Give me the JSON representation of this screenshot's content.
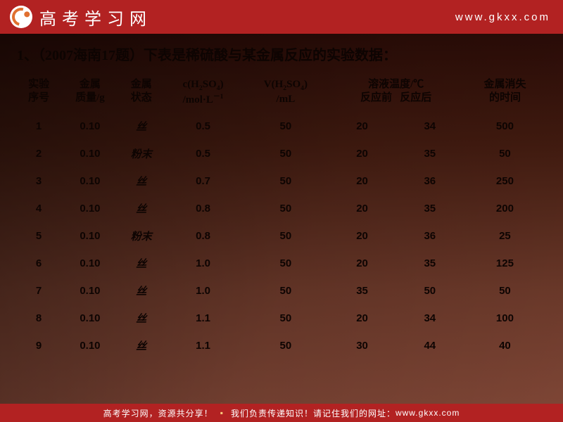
{
  "header": {
    "brand": "高考学习网",
    "url": "www.gkxx.com"
  },
  "title": "1、（2007海南17题）下表是稀硫酸与某金属反应的实验数据：",
  "table": {
    "type": "table",
    "columns": [
      {
        "line1": "实验",
        "line2": "序号"
      },
      {
        "line1": "金属",
        "line2": "质量/g"
      },
      {
        "line1": "金属",
        "line2": "状态"
      },
      {
        "line1": "c(H₂SO₄)",
        "line2": "/mol·L⁻¹"
      },
      {
        "line1": "V(H₂SO₄)",
        "line2": "/mL"
      },
      {
        "line1": "溶液温度/℃",
        "sub1": "反应前",
        "sub2": "反应后"
      },
      {
        "line1": "金属消失",
        "line2": "的时间"
      }
    ],
    "rows": [
      [
        "1",
        "0.10",
        "丝",
        "0.5",
        "50",
        "20",
        "34",
        "500"
      ],
      [
        "2",
        "0.10",
        "粉末",
        "0.5",
        "50",
        "20",
        "35",
        "50"
      ],
      [
        "3",
        "0.10",
        "丝",
        "0.7",
        "50",
        "20",
        "36",
        "250"
      ],
      [
        "4",
        "0.10",
        "丝",
        "0.8",
        "50",
        "20",
        "35",
        "200"
      ],
      [
        "5",
        "0.10",
        "粉末",
        "0.8",
        "50",
        "20",
        "36",
        "25"
      ],
      [
        "6",
        "0.10",
        "丝",
        "1.0",
        "50",
        "20",
        "35",
        "125"
      ],
      [
        "7",
        "0.10",
        "丝",
        "1.0",
        "50",
        "35",
        "50",
        "50"
      ],
      [
        "8",
        "0.10",
        "丝",
        "1.1",
        "50",
        "20",
        "34",
        "100"
      ],
      [
        "9",
        "0.10",
        "丝",
        "1.1",
        "50",
        "30",
        "44",
        "40"
      ]
    ]
  },
  "footer": {
    "part1": "高考学习网，资源共分享！",
    "part2": "我们负责传递知识！请记住我们的网址：",
    "part3": "www.gkxx.com"
  },
  "style": {
    "header_bg": "#b22222",
    "footer_bg": "#b22222",
    "content_gradient_top": "#2b0c07",
    "content_gradient_bottom": "#7d4535",
    "text_color": "#0d0402",
    "brand_color": "#ffffff",
    "title_fontsize": 20,
    "cell_fontsize": 15,
    "footer_fontsize": 12
  }
}
